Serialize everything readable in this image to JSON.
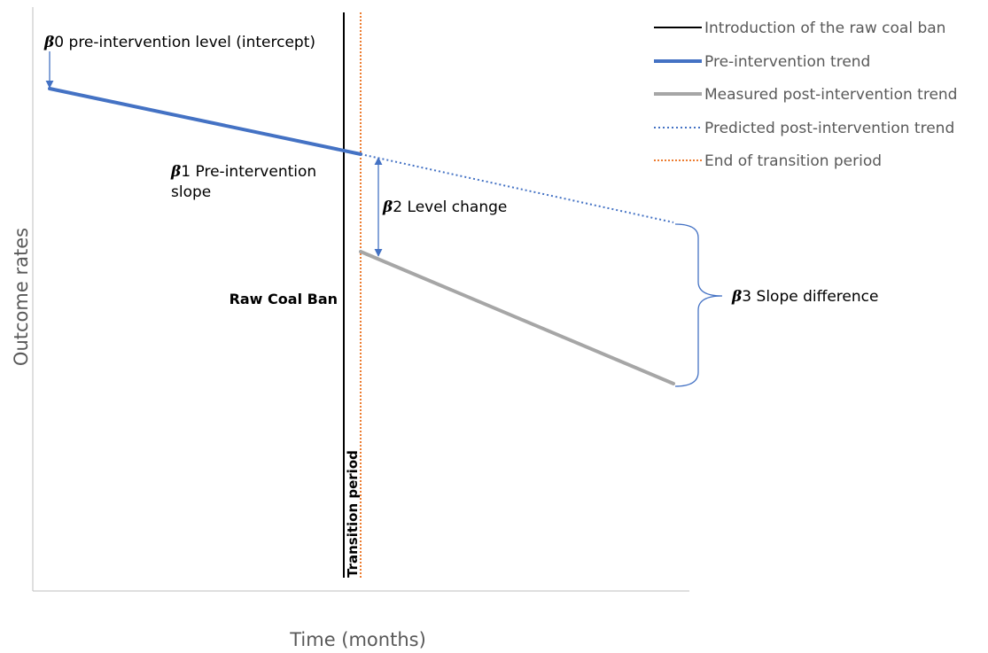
{
  "colors": {
    "pre_trend": "#4472c4",
    "measured_post": "#a6a6a6",
    "predicted_post": "#4472c4",
    "transition_end": "#ed7d31",
    "ban_line": "#000000",
    "axis": "#bfbfbf",
    "legend_text": "#595959"
  },
  "legend": [
    {
      "label": "Introduction of the raw coal ban",
      "style": "solid-black"
    },
    {
      "label": "Pre-intervention trend",
      "style": "solid-blue-thick"
    },
    {
      "label": "Measured post-intervention trend",
      "style": "solid-grey-thick"
    },
    {
      "label": "Predicted post-intervention trend",
      "style": "dotted-blue"
    },
    {
      "label": "End of transition period",
      "style": "dotted-orange"
    }
  ],
  "axes": {
    "y_title": "Outcome rates",
    "x_title": "Time (months)"
  },
  "annotations": {
    "beta_symbol": "𝜷",
    "b0_num": "0",
    "b0_text": " pre-intervention level (intercept)",
    "b1_num": "1",
    "b1_text_line1": " Pre-intervention",
    "b1_text_line2": "slope",
    "b2_num": "2",
    "b2_text": " Level change",
    "b3_num": "3",
    "b3_text": " Slope difference",
    "ban_label": "Raw Coal Ban",
    "transition_label": "Transition period"
  }
}
